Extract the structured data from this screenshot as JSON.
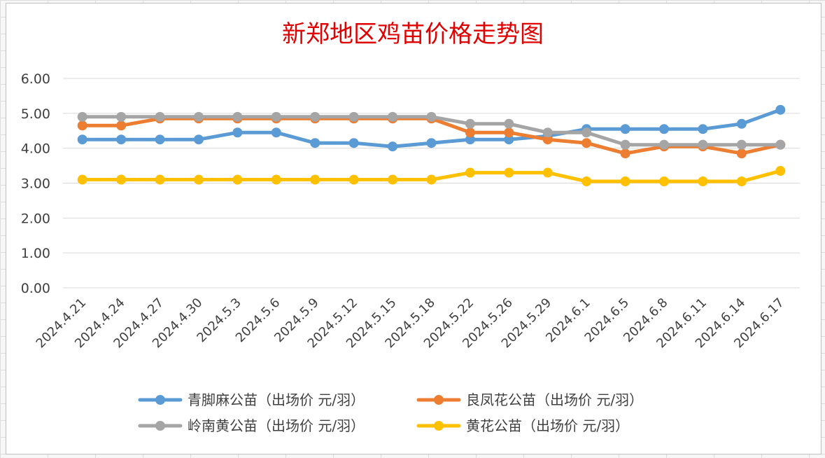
{
  "chart_data": {
    "type": "line",
    "title": "新郑地区鸡苗价格走势图",
    "xlabel": "",
    "ylabel": "",
    "ylim": [
      0,
      6
    ],
    "yticks": [
      "0.00",
      "1.00",
      "2.00",
      "3.00",
      "4.00",
      "5.00",
      "6.00"
    ],
    "grid": true,
    "legend_position": "bottom",
    "categories": [
      "2024.4.21",
      "2024.4.24",
      "2024.4.27",
      "2024.4.30",
      "2024.5.3",
      "2024.5.6",
      "2024.5.9",
      "2024.5.12",
      "2024.5.15",
      "2024.5.18",
      "2024.5.22",
      "2024.5.26",
      "2024.5.29",
      "2024.6.1",
      "2024.6.5",
      "2024.6.8",
      "2024.6.11",
      "2024.6.14",
      "2024.6.17"
    ],
    "series": [
      {
        "name": "青脚麻公苗（出场价 元/羽）",
        "color": "#5b9bd5",
        "values": [
          4.25,
          4.25,
          4.25,
          4.25,
          4.45,
          4.45,
          4.15,
          4.15,
          4.05,
          4.15,
          4.25,
          4.25,
          4.35,
          4.55,
          4.55,
          4.55,
          4.55,
          4.7,
          5.1
        ]
      },
      {
        "name": "良凤花公苗（出场价 元/羽）",
        "color": "#ed7d31",
        "values": [
          4.65,
          4.65,
          4.85,
          4.85,
          4.85,
          4.85,
          4.85,
          4.85,
          4.85,
          4.85,
          4.45,
          4.45,
          4.25,
          4.15,
          3.85,
          4.05,
          4.05,
          3.85,
          4.1
        ]
      },
      {
        "name": "岭南黄公苗（出场价 元/羽）",
        "color": "#a5a5a5",
        "values": [
          4.9,
          4.9,
          4.9,
          4.9,
          4.9,
          4.9,
          4.9,
          4.9,
          4.9,
          4.9,
          4.7,
          4.7,
          4.45,
          4.45,
          4.1,
          4.1,
          4.1,
          4.1,
          4.1
        ]
      },
      {
        "name": "黄花公苗（出场价 元/羽）",
        "color": "#ffc000",
        "values": [
          3.1,
          3.1,
          3.1,
          3.1,
          3.1,
          3.1,
          3.1,
          3.1,
          3.1,
          3.1,
          3.3,
          3.3,
          3.3,
          3.05,
          3.05,
          3.05,
          3.05,
          3.05,
          3.35
        ]
      }
    ]
  }
}
